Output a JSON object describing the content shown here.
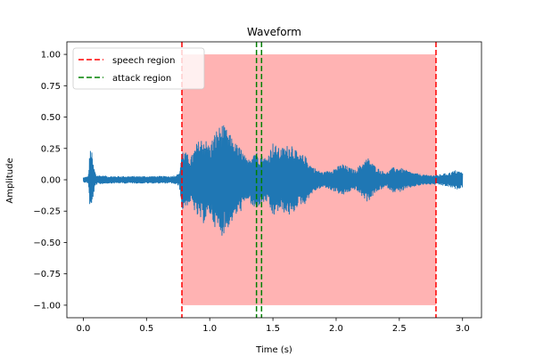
{
  "chart_data": {
    "type": "line",
    "title": "Waveform",
    "xlabel": "Time (s)",
    "ylabel": "Amplitude",
    "xlim": [
      -0.13,
      3.15
    ],
    "ylim": [
      -1.1,
      1.1
    ],
    "xticks": [
      0.0,
      0.5,
      1.0,
      1.5,
      2.0,
      2.5,
      3.0
    ],
    "xtick_labels": [
      "0.0",
      "0.5",
      "1.0",
      "1.5",
      "2.0",
      "2.5",
      "3.0"
    ],
    "yticks": [
      1.0,
      0.75,
      0.5,
      0.25,
      0.0,
      -0.25,
      -0.5,
      -0.75,
      -1.0
    ],
    "ytick_labels": [
      "1.00",
      "0.75",
      "0.50",
      "0.25",
      "0.00",
      "−0.25",
      "−0.50",
      "−0.75",
      "−1.00"
    ],
    "grid": false,
    "legend_position": "top-left",
    "series": [
      {
        "name": "waveform",
        "color": "#1f77b4",
        "duration": 3.0,
        "envelope": [
          [
            0.0,
            0.02
          ],
          [
            0.04,
            0.03
          ],
          [
            0.05,
            0.2
          ],
          [
            0.06,
            0.28
          ],
          [
            0.08,
            0.12
          ],
          [
            0.1,
            0.04
          ],
          [
            0.2,
            0.03
          ],
          [
            0.7,
            0.03
          ],
          [
            0.76,
            0.05
          ],
          [
            0.78,
            0.25
          ],
          [
            0.85,
            0.18
          ],
          [
            0.9,
            0.3
          ],
          [
            0.95,
            0.35
          ],
          [
            1.0,
            0.28
          ],
          [
            1.05,
            0.4
          ],
          [
            1.1,
            0.45
          ],
          [
            1.15,
            0.38
          ],
          [
            1.2,
            0.3
          ],
          [
            1.25,
            0.25
          ],
          [
            1.3,
            0.15
          ],
          [
            1.35,
            0.25
          ],
          [
            1.4,
            0.2
          ],
          [
            1.45,
            0.18
          ],
          [
            1.5,
            0.3
          ],
          [
            1.55,
            0.25
          ],
          [
            1.6,
            0.27
          ],
          [
            1.65,
            0.3
          ],
          [
            1.7,
            0.2
          ],
          [
            1.75,
            0.2
          ],
          [
            1.8,
            0.12
          ],
          [
            1.85,
            0.08
          ],
          [
            1.9,
            0.06
          ],
          [
            1.95,
            0.08
          ],
          [
            2.0,
            0.1
          ],
          [
            2.05,
            0.13
          ],
          [
            2.1,
            0.1
          ],
          [
            2.15,
            0.08
          ],
          [
            2.2,
            0.13
          ],
          [
            2.25,
            0.18
          ],
          [
            2.3,
            0.12
          ],
          [
            2.35,
            0.08
          ],
          [
            2.4,
            0.06
          ],
          [
            2.45,
            0.1
          ],
          [
            2.5,
            0.1
          ],
          [
            2.6,
            0.06
          ],
          [
            2.7,
            0.04
          ],
          [
            2.8,
            0.04
          ],
          [
            2.9,
            0.06
          ],
          [
            2.95,
            0.08
          ],
          [
            3.0,
            0.06
          ]
        ]
      }
    ],
    "regions": [
      {
        "name": "speech region",
        "color": "#ff0000",
        "fill": "#ffb3b3",
        "start": 0.78,
        "end": 2.79,
        "y_range": [
          -1.0,
          1.0
        ]
      },
      {
        "name": "attack region",
        "color": "#008000",
        "start": 1.37,
        "end": 1.41
      }
    ],
    "legend": [
      "speech region",
      "attack region"
    ]
  }
}
